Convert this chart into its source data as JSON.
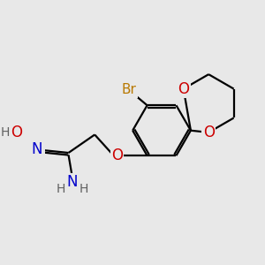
{
  "bg_color": "#e8e8e8",
  "bond_color": "#000000",
  "bond_width": 1.6,
  "atom_colors": {
    "Br": "#b87800",
    "O": "#cc0000",
    "N": "#0000cc",
    "H": "#606060",
    "C": "#000000"
  },
  "font_size_atoms": 12,
  "font_size_H": 10,
  "font_size_Br": 11
}
